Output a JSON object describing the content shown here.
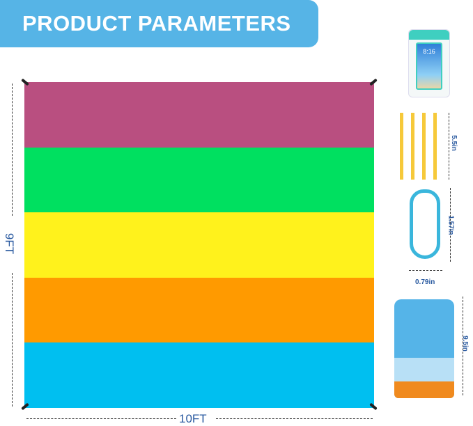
{
  "banner": {
    "title": "PRODUCT PARAMETERS",
    "color": "#56b4e6"
  },
  "blanket": {
    "stripes": [
      "#b94f80",
      "#00e060",
      "#fff21c",
      "#ff9a00",
      "#00bff0"
    ],
    "height_label": "9FT",
    "width_label": "10FT"
  },
  "accessories": {
    "phone_case": {
      "time": "8:16"
    },
    "stakes": {
      "length": "5.5in"
    },
    "carabiner": {
      "height": "1.57in",
      "width": "0.79in"
    },
    "bag": {
      "height": "9.5in"
    }
  }
}
